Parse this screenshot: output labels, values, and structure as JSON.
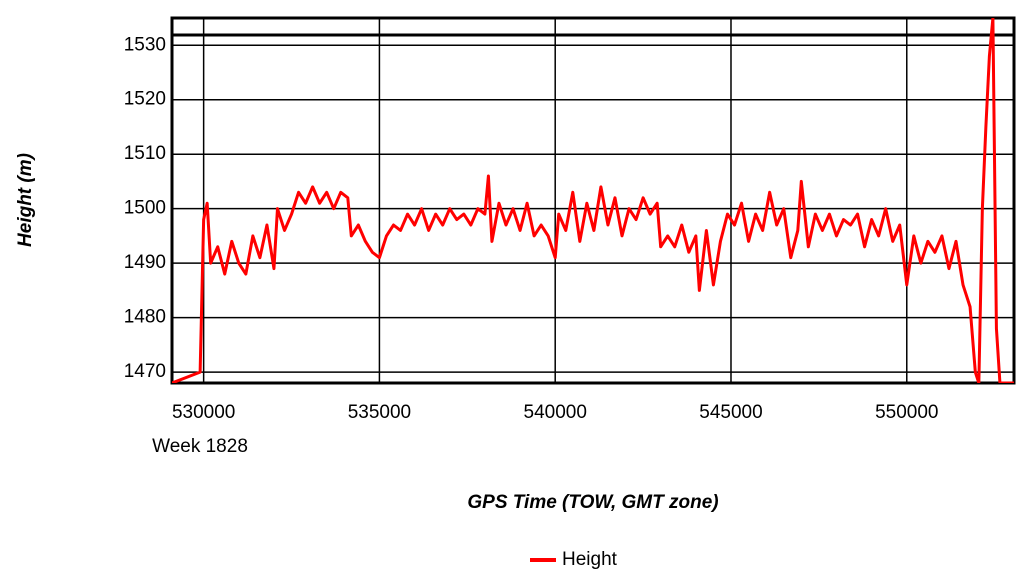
{
  "chart_data": {
    "type": "line",
    "x_label": "GPS Time (TOW, GMT zone)",
    "y_label": "Height (m)",
    "annotation": "Week 1828",
    "xlim": [
      529100,
      553050
    ],
    "ylim": [
      1468,
      1535
    ],
    "xticks": [
      530000,
      535000,
      540000,
      545000,
      550000
    ],
    "yticks": [
      1470,
      1480,
      1490,
      1500,
      1510,
      1520,
      1530
    ],
    "grid": true,
    "legend": "bottom",
    "x": [
      529100,
      529900,
      530000,
      530100,
      530200,
      530400,
      530600,
      530800,
      531000,
      531200,
      531400,
      531600,
      531800,
      532000,
      532100,
      532300,
      532500,
      532700,
      532900,
      533100,
      533300,
      533500,
      533700,
      533900,
      534100,
      534200,
      534400,
      534600,
      534800,
      535000,
      535200,
      535400,
      535600,
      535800,
      536000,
      536200,
      536400,
      536600,
      536800,
      537000,
      537200,
      537400,
      537600,
      537800,
      538000,
      538100,
      538200,
      538400,
      538600,
      538800,
      539000,
      539200,
      539400,
      539600,
      539800,
      540000,
      540100,
      540300,
      540500,
      540700,
      540900,
      541100,
      541300,
      541500,
      541700,
      541900,
      542100,
      542300,
      542500,
      542700,
      542900,
      543000,
      543200,
      543400,
      543600,
      543800,
      544000,
      544100,
      544300,
      544500,
      544700,
      544900,
      545100,
      545300,
      545500,
      545700,
      545900,
      546100,
      546300,
      546500,
      546700,
      546900,
      547000,
      547200,
      547400,
      547600,
      547800,
      548000,
      548200,
      548400,
      548600,
      548800,
      549000,
      549200,
      549400,
      549600,
      549800,
      550000,
      550200,
      550400,
      550600,
      550800,
      551000,
      551200,
      551400,
      551600,
      551800,
      551950,
      552050,
      552150,
      552250,
      552350,
      552450,
      552550,
      552650,
      553050
    ],
    "series": [
      {
        "name": "Height",
        "color": "#ff0000",
        "values": [
          1468,
          1470,
          1498,
          1501,
          1490,
          1493,
          1488,
          1494,
          1490,
          1488,
          1495,
          1491,
          1497,
          1489,
          1500,
          1496,
          1499,
          1503,
          1501,
          1504,
          1501,
          1503,
          1500,
          1503,
          1502,
          1495,
          1497,
          1494,
          1492,
          1491,
          1495,
          1497,
          1496,
          1499,
          1497,
          1500,
          1496,
          1499,
          1497,
          1500,
          1498,
          1499,
          1497,
          1500,
          1499,
          1506,
          1494,
          1501,
          1497,
          1500,
          1496,
          1501,
          1495,
          1497,
          1495,
          1491,
          1499,
          1496,
          1503,
          1494,
          1501,
          1496,
          1504,
          1497,
          1502,
          1495,
          1500,
          1498,
          1502,
          1499,
          1501,
          1493,
          1495,
          1493,
          1497,
          1492,
          1495,
          1485,
          1496,
          1486,
          1494,
          1499,
          1497,
          1501,
          1494,
          1499,
          1496,
          1503,
          1497,
          1500,
          1491,
          1496,
          1505,
          1493,
          1499,
          1496,
          1499,
          1495,
          1498,
          1497,
          1499,
          1493,
          1498,
          1495,
          1500,
          1494,
          1497,
          1486,
          1495,
          1490,
          1494,
          1492,
          1495,
          1489,
          1494,
          1486,
          1482,
          1470,
          1468,
          1500,
          1515,
          1528,
          1535,
          1478,
          1468,
          1468
        ]
      }
    ]
  }
}
